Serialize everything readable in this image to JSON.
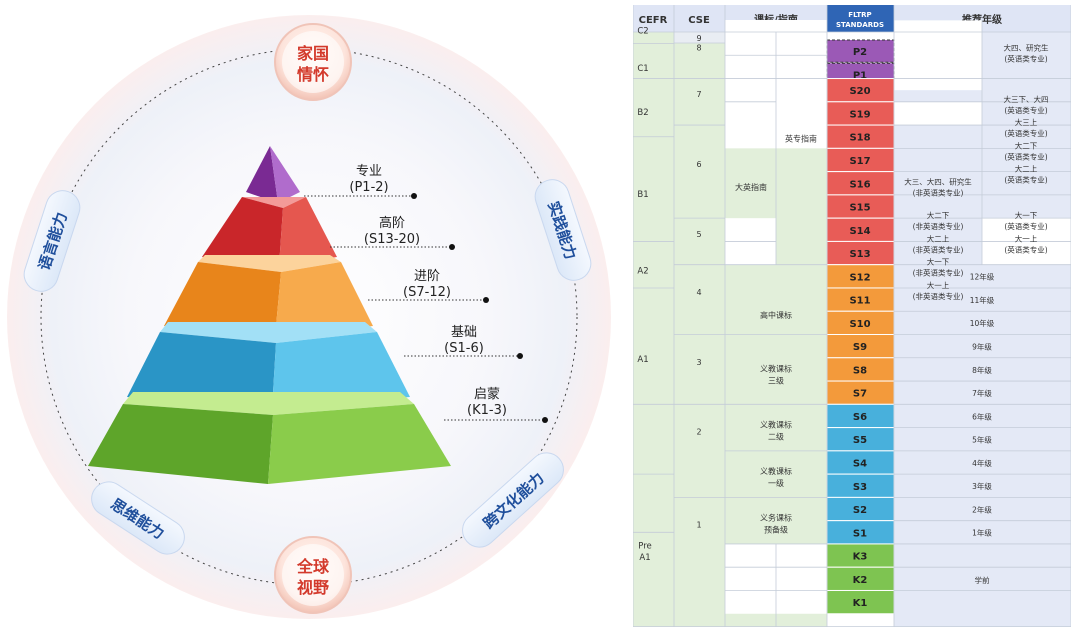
{
  "diagram": {
    "badges": [
      {
        "id": "home",
        "lines": [
          "家国",
          "情怀"
        ]
      },
      {
        "id": "global",
        "lines": [
          "全球",
          "视野"
        ]
      }
    ],
    "pills": [
      {
        "id": "language",
        "text": "语言能力"
      },
      {
        "id": "practice",
        "text": "实践能力"
      },
      {
        "id": "thinking",
        "text": "思维能力"
      },
      {
        "id": "crosscultural",
        "text": "跨文化能力"
      }
    ],
    "levels": [
      {
        "name": "专业",
        "range": "(P1-2)",
        "colors": {
          "top": "#c87fd6",
          "left": "#7a2a93",
          "right": "#a55fc0"
        }
      },
      {
        "name": "高阶",
        "range": "(S13-20)",
        "colors": {
          "top": "#f08480",
          "left": "#c9262a",
          "right": "#e0504a"
        }
      },
      {
        "name": "进阶",
        "range": "(S7-12)",
        "colors": {
          "top": "#fbc880",
          "left": "#ea8a1d",
          "right": "#f7a84a"
        }
      },
      {
        "name": "基础",
        "range": "(S1-6)",
        "colors": {
          "top": "#8fd8f4",
          "left": "#2b98c8",
          "right": "#5cc2ea"
        }
      },
      {
        "name": "启蒙",
        "range": "(K1-3)",
        "colors": {
          "top": "#b6e47a",
          "left": "#5fa72b",
          "right": "#86c94a"
        }
      }
    ]
  },
  "table": {
    "headers": [
      "CEFR",
      "CSE",
      "课标/指南",
      "FLTRP STANDARDS",
      "推荐年级"
    ],
    "header_color": "#dfe5f5",
    "fltrp_header_color": "#2f65b5",
    "cefr": [
      "C2",
      "C1",
      "B2",
      "B1",
      "A2",
      "A1",
      "Pre A1"
    ],
    "cse": [
      "9",
      "8",
      "7",
      "6",
      "5",
      "4",
      "3",
      "2",
      "1"
    ],
    "guides": [
      "英专指南",
      "大英指南",
      "高中课标",
      "义教课标 三级",
      "义教课标 二级",
      "义教课标 一级",
      "义务课标 预备级"
    ],
    "levels": [
      "P2",
      "P1",
      "S20",
      "S19",
      "S18",
      "S17",
      "S16",
      "S15",
      "S14",
      "S13",
      "S12",
      "S11",
      "S10",
      "S9",
      "S8",
      "S7",
      "S6",
      "S5",
      "S4",
      "S3",
      "S2",
      "S1",
      "K3",
      "K2",
      "K1"
    ],
    "level_colors": {
      "P": "#9b59b6",
      "S_high": "#e85c57",
      "S_mid": "#f39a3b",
      "S_low": "#48b0dc",
      "K": "#7ec451"
    },
    "grades_non_major": [
      "大三、大四、研究生 (非英语类专业)",
      "大二下 (非英语类专业)",
      "大二上 (非英语类专业)",
      "大一下 (非英语类专业)",
      "大一上 (非英语类专业)"
    ],
    "grades_major": [
      "大四、研究生 (英语类专业)",
      "大三下、大四 (英语类专业)",
      "大三上 (英语类专业)",
      "大二下 (英语类专业)",
      "大二上 (英语类专业)",
      "大一下 (英语类专业)",
      "大一上 (英语类专业)"
    ],
    "grades_school": [
      "12年级",
      "11年级",
      "10年级",
      "9年级",
      "8年级",
      "7年级",
      "6年级",
      "5年级",
      "4年级",
      "3年级",
      "2年级",
      "1年级",
      "学前"
    ]
  }
}
